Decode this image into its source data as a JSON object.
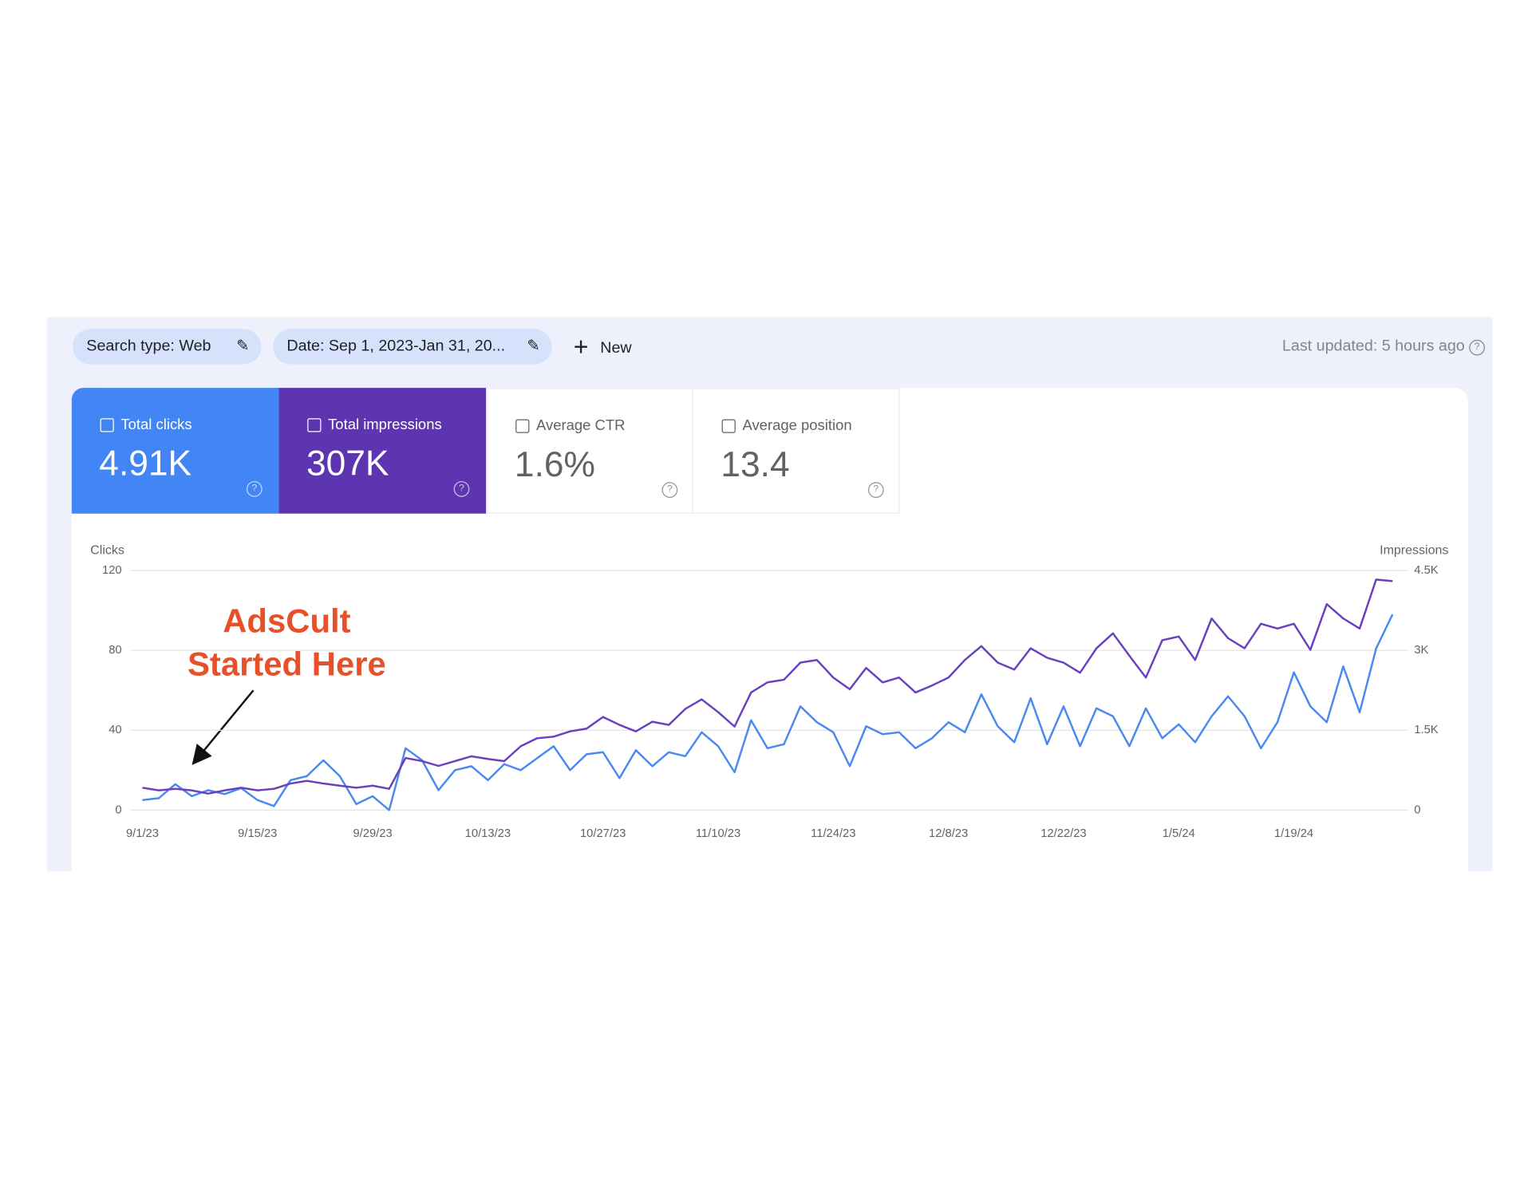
{
  "header": {
    "search_type": "Search type: Web",
    "date": "Date: Sep 1, 2023-Jan 31, 20...",
    "new": "New",
    "last_updated": "Last updated: 5 hours ago"
  },
  "metrics": [
    {
      "label": "Total clicks",
      "value": "4.91K"
    },
    {
      "label": "Total impressions",
      "value": "307K"
    },
    {
      "label": "Average CTR",
      "value": "1.6%"
    },
    {
      "label": "Average position",
      "value": "13.4"
    }
  ],
  "chart_data": {
    "type": "line",
    "annotation": [
      "AdsCult",
      "Started Here"
    ],
    "y_label": "Clicks",
    "y2_label": "Impressions",
    "categories": [
      "9/1/23",
      null,
      null,
      null,
      null,
      null,
      null,
      "9/15/23",
      null,
      null,
      null,
      null,
      null,
      null,
      "9/29/23",
      null,
      null,
      null,
      null,
      null,
      null,
      "10/13/23",
      null,
      null,
      null,
      null,
      null,
      null,
      "10/27/23",
      null,
      null,
      null,
      null,
      null,
      null,
      "11/10/23",
      null,
      null,
      null,
      null,
      null,
      null,
      "11/24/23",
      null,
      null,
      null,
      null,
      null,
      null,
      "12/8/23",
      null,
      null,
      null,
      null,
      null,
      null,
      "12/22/23",
      null,
      null,
      null,
      null,
      null,
      null,
      "1/5/24",
      null,
      null,
      null,
      null,
      null,
      null,
      "1/19/24",
      null,
      null,
      null,
      null,
      null,
      null
    ],
    "ylim": [
      0,
      120
    ],
    "yticks": [
      0,
      40,
      80,
      120
    ],
    "y2lim": [
      0,
      4500
    ],
    "y2ticks": [
      0,
      {
        "value": 1500,
        "label": "1.5K"
      },
      {
        "value": 3000,
        "label": "3K"
      },
      {
        "value": 4500,
        "label": "4.5K"
      }
    ],
    "grid": true,
    "series": [
      {
        "name": "Total clicks",
        "color": "#4a89f0",
        "values": [
          5,
          6,
          13,
          7,
          10,
          8,
          11,
          5,
          2,
          15,
          17,
          25,
          17,
          3,
          7,
          0,
          31,
          25,
          10,
          20,
          22,
          15,
          23,
          20,
          26,
          32,
          20,
          28,
          29,
          16,
          30,
          22,
          29,
          27,
          39,
          32,
          19,
          45,
          31,
          33,
          52,
          44,
          39,
          22,
          42,
          38,
          39,
          31,
          36,
          44,
          39,
          58,
          42,
          34,
          56,
          33,
          52,
          32,
          51,
          47,
          32,
          51,
          36,
          43,
          34,
          47,
          57,
          47,
          31,
          44,
          69,
          52,
          44,
          72,
          49,
          81,
          98
        ]
      },
      {
        "name": "Total impressions",
        "color": "#6a3fc0",
        "axis": "y2",
        "values": [
          420,
          370,
          400,
          370,
          310,
          370,
          420,
          370,
          400,
          500,
          550,
          500,
          460,
          420,
          460,
          400,
          980,
          920,
          830,
          920,
          1010,
          960,
          920,
          1200,
          1350,
          1380,
          1480,
          1530,
          1750,
          1600,
          1480,
          1660,
          1600,
          1900,
          2080,
          1840,
          1570,
          2210,
          2400,
          2450,
          2770,
          2820,
          2490,
          2270,
          2670,
          2400,
          2490,
          2210,
          2340,
          2490,
          2820,
          3080,
          2770,
          2640,
          3040,
          2860,
          2770,
          2580,
          3040,
          3320,
          2900,
          2490,
          3190,
          3260,
          2820,
          3600,
          3230,
          3040,
          3500,
          3410,
          3500,
          3010,
          3870,
          3600,
          3410,
          4330,
          4300
        ]
      }
    ]
  }
}
